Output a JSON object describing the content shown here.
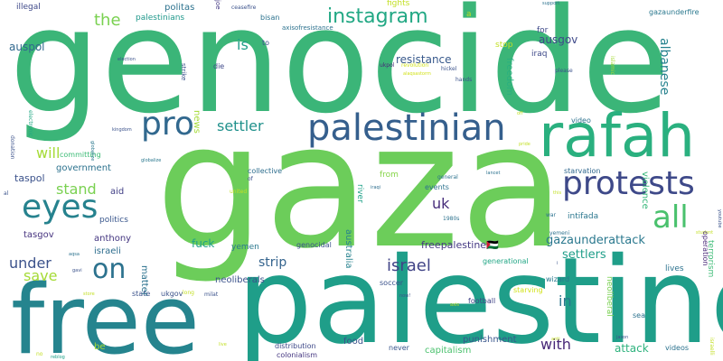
{
  "words": [
    {
      "text": "genocide",
      "color": "#3bb578"
    },
    {
      "text": "gaza",
      "color": "#6ccd5a"
    },
    {
      "text": "palestine",
      "color": "#1f9e89"
    },
    {
      "text": "free",
      "color": "#25848e"
    },
    {
      "text": "rafah",
      "color": "#2ab07f"
    },
    {
      "text": "palestinian",
      "color": "#355f8d"
    },
    {
      "text": "protests",
      "color": "#3e4989"
    },
    {
      "text": "pro",
      "color": "#31688e"
    },
    {
      "text": "eyes",
      "color": "#26828e"
    },
    {
      "text": "instagram",
      "color": "#22a884"
    },
    {
      "text": "all",
      "color": "#4ac16d"
    },
    {
      "text": "on",
      "color": "#2c728e"
    },
    {
      "text": "israel",
      "color": "#414487"
    },
    {
      "text": "settler",
      "color": "#21918c"
    },
    {
      "text": "stand",
      "color": "#7ad151"
    },
    {
      "text": "save",
      "color": "#a5db36"
    },
    {
      "text": "under",
      "color": "#3b528b"
    },
    {
      "text": "the",
      "color": "#7ad151"
    },
    {
      "text": "is",
      "color": "#1f9e89"
    },
    {
      "text": "will",
      "color": "#a5db36"
    },
    {
      "text": "uk",
      "color": "#472d7b"
    },
    {
      "text": "with",
      "color": "#482878"
    },
    {
      "text": "in",
      "color": "#2a788e"
    },
    {
      "text": "strip",
      "color": "#33638d"
    },
    {
      "text": "albanese",
      "color": "#26828e"
    },
    {
      "text": "violence",
      "color": "#35b779"
    },
    {
      "text": "resistance",
      "color": "#38598c"
    },
    {
      "text": "gazaunderattack",
      "color": "#2a788e"
    },
    {
      "text": "freepalestine🇵🇸",
      "color": "#443983"
    },
    {
      "text": "settlers",
      "color": "#1f9e89"
    },
    {
      "text": "attack",
      "color": "#2db27d"
    },
    {
      "text": "fuck",
      "color": "#1fa188"
    },
    {
      "text": "ausgov",
      "color": "#3e4989"
    },
    {
      "text": "auspol",
      "color": "#31688e"
    },
    {
      "text": "government",
      "color": "#2c728e"
    },
    {
      "text": "politas",
      "color": "#2c728e"
    },
    {
      "text": "anthony",
      "color": "#453781"
    },
    {
      "text": "israeli",
      "color": "#2e6e8e"
    },
    {
      "text": "taspol",
      "color": "#3b528b"
    },
    {
      "text": "tasgov",
      "color": "#46337f"
    },
    {
      "text": "politics",
      "color": "#39568c"
    },
    {
      "text": "aid",
      "color": "#424086"
    },
    {
      "text": "iraq",
      "color": "#3e4989"
    },
    {
      "text": "for",
      "color": "#3e4989"
    },
    {
      "text": "intifada",
      "color": "#2a768e"
    },
    {
      "text": "starvation",
      "color": "#31688e"
    },
    {
      "text": "lives",
      "color": "#2c728e"
    },
    {
      "text": "yemen",
      "color": "#2a788e"
    },
    {
      "text": "genocidal",
      "color": "#3b528b"
    },
    {
      "text": "generational",
      "color": "#21a685"
    },
    {
      "text": "freedom",
      "color": "#2ab07f"
    },
    {
      "text": "neoliberals",
      "color": "#3b528b"
    },
    {
      "text": "committing",
      "color": "#3bbb75"
    },
    {
      "text": "palestinians",
      "color": "#1f988b"
    },
    {
      "text": "collective",
      "color": "#2e6e8e"
    },
    {
      "text": "from",
      "color": "#86d549"
    },
    {
      "text": "stop",
      "color": "#c2df23"
    },
    {
      "text": "fights",
      "color": "#c2df23"
    },
    {
      "text": "bisan",
      "color": "#2c728e"
    },
    {
      "text": "illegal",
      "color": "#3e4989"
    },
    {
      "text": "die",
      "color": "#3e4989"
    },
    {
      "text": "news",
      "color": "#a5db36"
    },
    {
      "text": "football",
      "color": "#414487"
    },
    {
      "text": "soccer",
      "color": "#3b528b"
    },
    {
      "text": "wizard",
      "color": "#2a788e"
    },
    {
      "text": "starving",
      "color": "#d2e21b"
    },
    {
      "text": "punishment",
      "color": "#39568c"
    },
    {
      "text": "food",
      "color": "#3b528b"
    },
    {
      "text": "never",
      "color": "#39568c"
    },
    {
      "text": "capitalism",
      "color": "#4ac16d"
    },
    {
      "text": "distribution",
      "color": "#3e4989"
    },
    {
      "text": "colonialism",
      "color": "#453781"
    },
    {
      "text": "videos",
      "color": "#2c728e"
    },
    {
      "text": "video",
      "color": "#2c728e"
    },
    {
      "text": "matter",
      "color": "#2c728e"
    },
    {
      "text": "australia",
      "color": "#26828e"
    },
    {
      "text": "river",
      "color": "#1fa188"
    },
    {
      "text": "neoliberal",
      "color": "#7ad151"
    },
    {
      "text": "terrorism",
      "color": "#3bbb75"
    },
    {
      "text": "operation",
      "color": "#482878"
    },
    {
      "text": "state",
      "color": "#3b528b"
    },
    {
      "text": "be",
      "color": "#a5db36"
    },
    {
      "text": "sea",
      "color": "#2c728e"
    },
    {
      "text": "gazaunderfire",
      "color": "#2a788e"
    },
    {
      "text": "a",
      "color": "#c2df23"
    },
    {
      "text": "to",
      "color": "#3b528b"
    },
    {
      "text": "hands",
      "color": "#3b528b"
    },
    {
      "text": "hickel",
      "color": "#3b528b"
    },
    {
      "text": "ukpol",
      "color": "#482878"
    },
    {
      "text": "revolution",
      "color": "#d2e21b"
    },
    {
      "text": "alaqsastorm",
      "color": "#d2e21b"
    },
    {
      "text": "axisofresistance",
      "color": "#2c728e"
    },
    {
      "text": "ceasefire",
      "color": "#3b528b"
    },
    {
      "text": "joe",
      "color": "#443983"
    },
    {
      "text": "election",
      "color": "#3b528b"
    },
    {
      "text": "strike",
      "color": "#3b528b"
    },
    {
      "text": "electronic",
      "color": "#22a884"
    },
    {
      "text": "globalize",
      "color": "#2a788e"
    },
    {
      "text": "general",
      "color": "#2c728e"
    },
    {
      "text": "lancet",
      "color": "#2c728e"
    },
    {
      "text": "events",
      "color": "#2c728e"
    },
    {
      "text": "iraqi",
      "color": "#2e6e8e"
    },
    {
      "text": "1980s",
      "color": "#2c728e"
    },
    {
      "text": "war",
      "color": "#2c728e"
    },
    {
      "text": "yemeni",
      "color": "#2c728e"
    },
    {
      "text": "now!",
      "color": "#3b528b"
    },
    {
      "text": "aqsa",
      "color": "#2c728e"
    },
    {
      "text": "support",
      "color": "#2c728e"
    },
    {
      "text": "islamic",
      "color": "#a5db36"
    },
    {
      "text": "please",
      "color": "#3b528b"
    },
    {
      "text": "pride",
      "color": "#c2df23"
    },
    {
      "text": "youtube",
      "color": "#3b528b"
    },
    {
      "text": "student",
      "color": "#c2df23"
    },
    {
      "text": "this",
      "color": "#c2df23"
    },
    {
      "text": "kingdom",
      "color": "#3b528b"
    },
    {
      "text": "donation",
      "color": "#3b528b"
    },
    {
      "text": "al",
      "color": "#3b528b"
    },
    {
      "text": "gavi",
      "color": "#3b528b"
    },
    {
      "text": "store",
      "color": "#c2df23"
    },
    {
      "text": "live",
      "color": "#c2df23"
    },
    {
      "text": "no",
      "color": "#c2df23"
    },
    {
      "text": "reblog",
      "color": "#1fa188"
    },
    {
      "text": "israelli",
      "color": "#c2df23"
    },
    {
      "text": "jason",
      "color": "#3b528b"
    },
    {
      "text": "anti",
      "color": "#c2df23"
    },
    {
      "text": "milat",
      "color": "#3b528b"
    },
    {
      "text": "long",
      "color": "#c2df23"
    },
    {
      "text": "ukgov",
      "color": "#3b528b"
    },
    {
      "text": "i",
      "color": "#3b528b"
    },
    {
      "text": "united",
      "color": "#c2df23"
    },
    {
      "text": "of",
      "color": "#3b528b"
    },
    {
      "text": "off",
      "color": "#c2df23"
    },
    {
      "text": "axis",
      "color": "#c2df23"
    },
    {
      "text": "current",
      "color": "#c2df23"
    },
    {
      "text": "student",
      "color": "#c2df23"
    }
  ]
}
